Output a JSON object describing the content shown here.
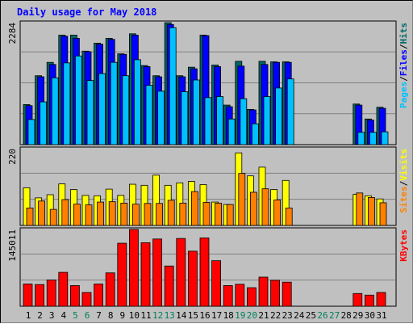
{
  "chart_data": {
    "type": "bar",
    "title": "Daily usage for May 2018",
    "days": [
      "1",
      "2",
      "3",
      "4",
      "5",
      "6",
      "7",
      "8",
      "9",
      "10",
      "11",
      "12",
      "13",
      "14",
      "15",
      "16",
      "17",
      "18",
      "19",
      "20",
      "21",
      "22",
      "23",
      "24",
      "25",
      "26",
      "27",
      "28",
      "29",
      "30",
      "31"
    ],
    "weekend_days": [
      "5",
      "6",
      "12",
      "13",
      "19",
      "20",
      "26",
      "27"
    ],
    "colors": {
      "background": "#c0c0c0",
      "title": "#0000ff",
      "hits": "#006666",
      "files": "#0000ff",
      "pages": "#00c0ff",
      "visits": "#ffff00",
      "sites": "#ff8000",
      "kbytes": "#ff0000",
      "weekend_label": "#00805c"
    },
    "panels": [
      {
        "name": "hits-files-pages",
        "max_label": "2284",
        "ymax": 2284,
        "legend": [
          {
            "text": "Hits",
            "color": "#006666"
          },
          {
            "text": "Files",
            "color": "#0000ff"
          },
          {
            "text": "Pages",
            "color": "#00c0ff"
          }
        ],
        "series": [
          {
            "name": "Hits",
            "color": "#006666",
            "values": [
              750,
              1290,
              1540,
              2050,
              2050,
              1750,
              1900,
              1990,
              1700,
              2075,
              1480,
              1290,
              2283,
              1290,
              1450,
              2050,
              1490,
              740,
              1560,
              660,
              1560,
              1550,
              1550,
              0,
              0,
              0,
              0,
              0,
              760,
              480,
              700
            ]
          },
          {
            "name": "Files",
            "color": "#0000ff",
            "values": [
              730,
              1270,
              1500,
              2030,
              1990,
              1740,
              1880,
              1970,
              1690,
              2050,
              1460,
              1270,
              2250,
              1270,
              1420,
              2040,
              1460,
              710,
              1470,
              650,
              1500,
              1540,
              1540,
              0,
              0,
              0,
              0,
              0,
              740,
              460,
              680
            ]
          },
          {
            "name": "Pages",
            "color": "#00c0ff",
            "values": [
              470,
              800,
              1250,
              1530,
              1660,
              1200,
              1330,
              1540,
              1290,
              1590,
              1110,
              1000,
              2190,
              990,
              1210,
              880,
              900,
              480,
              860,
              390,
              900,
              1060,
              1230,
              0,
              0,
              0,
              0,
              0,
              230,
              230,
              240
            ]
          }
        ]
      },
      {
        "name": "visits-sites",
        "max_label": "220",
        "ymax": 220,
        "legend": [
          {
            "text": "Visits",
            "color": "#ffff00"
          },
          {
            "text": "Sites",
            "color": "#ff8000"
          }
        ],
        "series": [
          {
            "name": "Visits",
            "color": "#ffff00",
            "values": [
              108,
              79,
              88,
              119,
              103,
              86,
              85,
              104,
              86,
              118,
              115,
              144,
              115,
              122,
              126,
              117,
              67,
              60,
              208,
              142,
              167,
              103,
              129,
              0,
              0,
              0,
              0,
              0,
              89,
              85,
              76
            ]
          },
          {
            "name": "Sites",
            "color": "#ff8000",
            "values": [
              50,
              70,
              46,
              74,
              61,
              59,
              67,
              68,
              64,
              61,
              63,
              63,
              72,
              64,
              97,
              66,
              64,
              60,
              149,
              95,
              105,
              73,
              50,
              0,
              0,
              0,
              0,
              0,
              93,
              80,
              65
            ]
          }
        ]
      },
      {
        "name": "kbytes",
        "max_label": "145011",
        "ymax": 145011,
        "legend": [
          {
            "text": "KBytes",
            "color": "#ff0000"
          }
        ],
        "series": [
          {
            "name": "KBytes",
            "color": "#ff0000",
            "values": [
              42000,
              41000,
              49500,
              64000,
              39000,
              26000,
              42000,
              63000,
              119000,
              145011,
              120000,
              127000,
              76000,
              128000,
              104000,
              129000,
              86000,
              39000,
              41500,
              35000,
              55000,
              49000,
              45500,
              0,
              0,
              0,
              0,
              0,
              24000,
              21000,
              26000
            ]
          }
        ]
      }
    ]
  }
}
